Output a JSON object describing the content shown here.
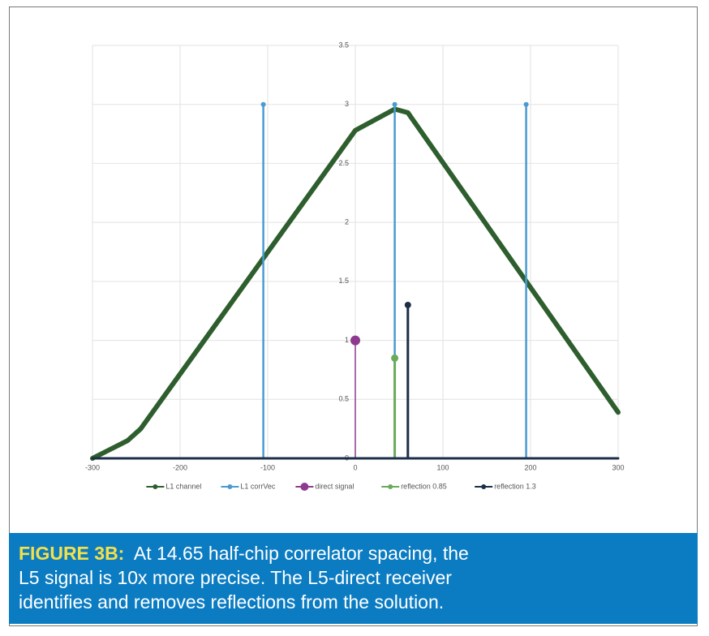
{
  "chart_data": {
    "type": "line",
    "xlim": [
      -300,
      300
    ],
    "xticks": [
      -300,
      -200,
      -100,
      0,
      100,
      200,
      300
    ],
    "ylim": [
      0,
      3.5
    ],
    "yticks": [
      0,
      0.5,
      1,
      1.5,
      2,
      2.5,
      3,
      3.5
    ],
    "grid": true,
    "legend": "bottom",
    "series": [
      {
        "name": "L1 channel",
        "color": "#2e5e2e",
        "x": [
          -300,
          -260,
          -245,
          0,
          45,
          60,
          300
        ],
        "values": [
          0,
          0.15,
          0.25,
          2.78,
          2.96,
          2.93,
          0.39
        ]
      },
      {
        "name": "L1 corrVec",
        "color": "#4a9bd0",
        "x": [
          -105,
          -105,
          -105,
          45,
          45,
          45,
          195,
          195
        ],
        "values": [
          0,
          3,
          null,
          0,
          3,
          null,
          0,
          3
        ]
      },
      {
        "name": "direct signal",
        "color": "#8e3a8e",
        "x": [
          0,
          0
        ],
        "values": [
          0,
          1
        ]
      },
      {
        "name": "reflection 0.85",
        "color": "#6aaa5a",
        "x": [
          45,
          45
        ],
        "values": [
          0,
          0.85
        ]
      },
      {
        "name": "reflection 1.3",
        "color": "#1c2e48",
        "x": [
          -300,
          60,
          60,
          60,
          300
        ],
        "values": [
          0,
          0,
          1.3,
          0,
          0
        ]
      }
    ]
  },
  "caption": {
    "label": "FIGURE 3B:",
    "lines": [
      "At 14.65 half-chip correlator spacing, the",
      "L5 signal is 10x more precise. The L5-direct receiver",
      "identifies and removes reflections from the solution."
    ]
  }
}
